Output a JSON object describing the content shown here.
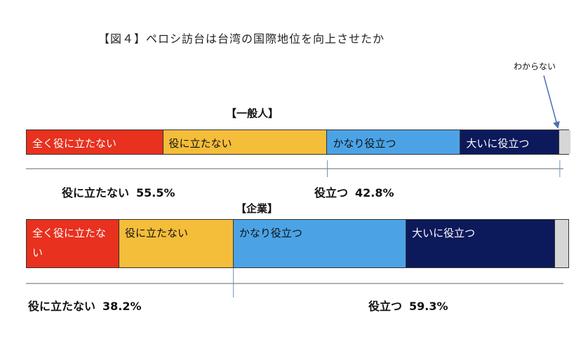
{
  "title": "【図４】ペロシ訪台は台湾の国際地位を向上させたか",
  "dont_know_label": "わからない",
  "colors": {
    "zenku_yaku": "#e8311f",
    "yaku_tatanai": "#f4bd3a",
    "kanari_yakudatsu": "#4ba3e6",
    "ooini_yakudatsu": "#0c1a5b",
    "wakaranai": "#d6d6d6"
  },
  "chart_data": [
    {
      "type": "bar",
      "title": "【一般人】",
      "categories": [
        "全く役に立たない",
        "役に立たない",
        "かなり役立つ",
        "大いに役立つ",
        "わからない"
      ],
      "values": [
        25.2,
        30.3,
        24.6,
        18.2,
        1.7
      ],
      "summary": {
        "negative_label": "役に立たない",
        "negative_value": "55.5%",
        "positive_label": "役立つ",
        "positive_value": "42.8%"
      }
    },
    {
      "type": "bar",
      "title": "【企業】",
      "categories": [
        "全く役に立たない",
        "役に立たない",
        "かなり役立つ",
        "大いに役立つ",
        "わからない"
      ],
      "values": [
        17.1,
        21.1,
        31.9,
        27.4,
        2.5
      ],
      "summary": {
        "negative_label": "役に立たない",
        "negative_value": "38.2%",
        "positive_label": "役立つ",
        "positive_value": "59.3%"
      }
    }
  ]
}
